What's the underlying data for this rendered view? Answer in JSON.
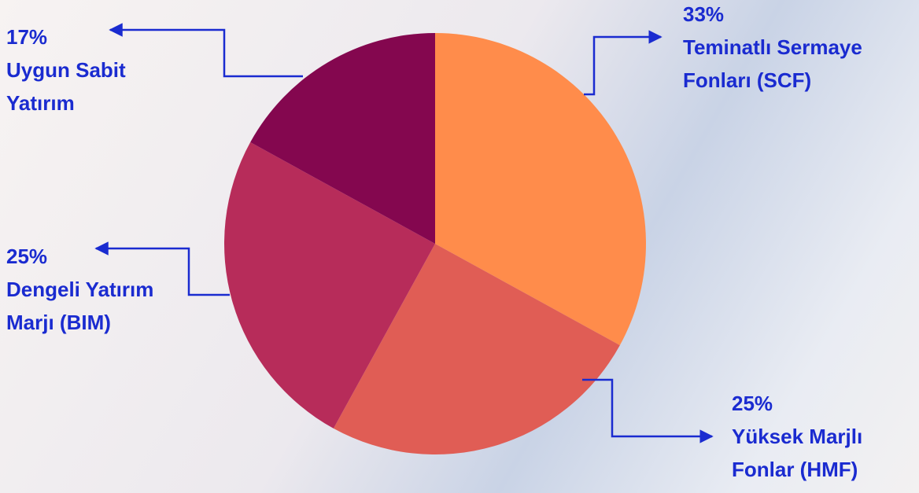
{
  "chart_data": {
    "type": "pie",
    "categories": [
      "Teminatlı Sermaye Fonları (SCF)",
      "Yüksek Marjlı Fonlar (HMF)",
      "Dengeli Yatırım Marjı (BIM)",
      "Uygun Sabit Yatırım"
    ],
    "values": [
      33,
      25,
      25,
      17
    ],
    "value_labels": [
      "33%",
      "25%",
      "25%",
      "17%"
    ],
    "colors": [
      "#ff8c4b",
      "#e05d55",
      "#b72c5a",
      "#84074f"
    ]
  }
}
